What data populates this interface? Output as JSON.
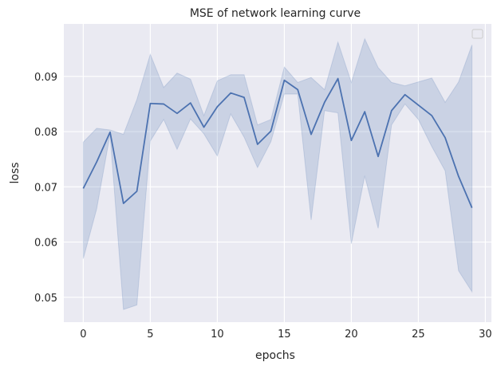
{
  "chart_data": {
    "type": "line",
    "title": "MSE of network learning curve",
    "xlabel": "epochs",
    "ylabel": "loss",
    "xlim": [
      -1.45,
      30.45
    ],
    "ylim": [
      0.0455,
      0.0995
    ],
    "x_ticks": [
      0,
      5,
      10,
      15,
      20,
      25,
      30
    ],
    "y_ticks": [
      0.05,
      0.06,
      0.07,
      0.08,
      0.09
    ],
    "y_tick_labels": [
      "0.05",
      "0.06",
      "0.07",
      "0.08",
      "0.09"
    ],
    "grid": true,
    "legend": "top-right (empty)",
    "colors": {
      "line": "#4c72b0",
      "band": "#4c72b0",
      "background": "#eaeaf2",
      "grid": "#ffffff"
    },
    "series": [
      {
        "x": [
          0,
          1,
          2,
          3,
          4,
          5,
          6,
          7,
          8,
          9,
          10,
          11,
          12,
          13,
          14,
          15,
          16,
          17,
          18,
          19,
          20,
          21,
          22,
          23,
          24,
          25,
          26,
          27,
          28,
          29
        ],
        "values": [
          0.0697,
          0.0745,
          0.0799,
          0.067,
          0.0692,
          0.0851,
          0.085,
          0.0833,
          0.0852,
          0.0808,
          0.0845,
          0.087,
          0.0862,
          0.0777,
          0.0801,
          0.0893,
          0.0876,
          0.0795,
          0.0853,
          0.0896,
          0.0784,
          0.0836,
          0.0755,
          0.0838,
          0.0867,
          0.0848,
          0.0829,
          0.0789,
          0.0719,
          0.0662
        ],
        "lower": [
          0.057,
          0.066,
          0.0795,
          0.0478,
          0.0486,
          0.0783,
          0.0822,
          0.0768,
          0.0823,
          0.0796,
          0.0756,
          0.0832,
          0.079,
          0.0735,
          0.0782,
          0.0868,
          0.0868,
          0.064,
          0.0838,
          0.0834,
          0.0597,
          0.072,
          0.0625,
          0.0812,
          0.085,
          0.0822,
          0.0773,
          0.0729,
          0.0548,
          0.051
        ],
        "upper": [
          0.0781,
          0.0806,
          0.0803,
          0.0795,
          0.0858,
          0.094,
          0.088,
          0.0906,
          0.0895,
          0.0829,
          0.0892,
          0.0903,
          0.0903,
          0.0812,
          0.0822,
          0.0917,
          0.0889,
          0.0898,
          0.0876,
          0.0962,
          0.0889,
          0.0968,
          0.0916,
          0.0889,
          0.0883,
          0.089,
          0.0897,
          0.0853,
          0.089,
          0.0957
        ]
      }
    ]
  }
}
